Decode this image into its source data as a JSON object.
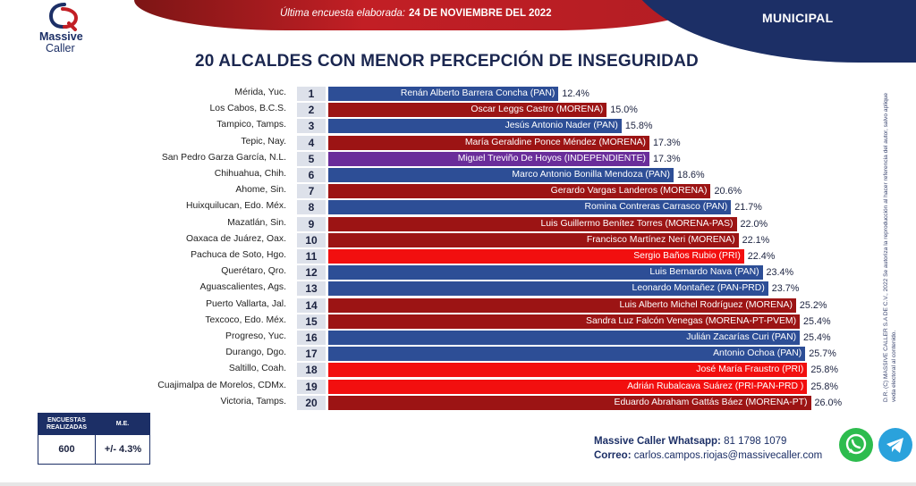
{
  "header": {
    "survey_prefix": "Última encuesta elaborada:",
    "survey_date": "24 DE NOVIEMBRE DEL 2022",
    "scope": "MUNICIPAL",
    "logo_line1": "Massive",
    "logo_line2": "Caller"
  },
  "colors": {
    "PAN": "#2d4e96",
    "MORENA": "#9c1414",
    "PRI": "#f20f0f",
    "INDEPENDIENTE": "#6a2d9a",
    "rank_bg": "#dde1ea",
    "navy": "#1c2f66"
  },
  "chart_data": {
    "type": "bar",
    "orientation": "horizontal",
    "title": "20 ALCALDES CON MENOR PERCEPCIÓN DE INSEGURIDAD",
    "xlim": [
      0,
      26
    ],
    "rows": [
      {
        "rank": "1",
        "city": "Mérida, Yuc.",
        "candidate": "Renán Alberto Barrera Concha (PAN)",
        "party": "PAN",
        "value": 12.4,
        "label": "12.4%"
      },
      {
        "rank": "2",
        "city": "Los Cabos, B.C.S.",
        "candidate": "Oscar Leggs Castro (MORENA)",
        "party": "MORENA",
        "value": 15.0,
        "label": "15.0%"
      },
      {
        "rank": "3",
        "city": "Tampico, Tamps.",
        "candidate": "Jesús Antonio Nader  (PAN)",
        "party": "PAN",
        "value": 15.8,
        "label": "15.8%"
      },
      {
        "rank": "4",
        "city": "Tepic, Nay.",
        "candidate": "María Geraldine Ponce Méndez (MORENA)",
        "party": "MORENA",
        "value": 17.3,
        "label": "17.3%"
      },
      {
        "rank": "5",
        "city": "San Pedro Garza García, N.L.",
        "candidate": "Miguel Treviño De Hoyos (INDEPENDIENTE)",
        "party": "INDEPENDIENTE",
        "value": 17.3,
        "label": "17.3%"
      },
      {
        "rank": "6",
        "city": "Chihuahua, Chih.",
        "candidate": "Marco Antonio Bonilla Mendoza (PAN)",
        "party": "PAN",
        "value": 18.6,
        "label": "18.6%"
      },
      {
        "rank": "7",
        "city": "Ahome, Sin.",
        "candidate": "Gerardo Vargas Landeros (MORENA)",
        "party": "MORENA",
        "value": 20.6,
        "label": "20.6%"
      },
      {
        "rank": "8",
        "city": "Huixquilucan, Edo. Méx.",
        "candidate": "Romina Contreras Carrasco  (PAN)",
        "party": "PAN",
        "value": 21.7,
        "label": "21.7%"
      },
      {
        "rank": "9",
        "city": "Mazatlán, Sin.",
        "candidate": "Luis Guillermo Benítez Torres (MORENA-PAS)",
        "party": "MORENA",
        "value": 22.0,
        "label": "22.0%"
      },
      {
        "rank": "10",
        "city": "Oaxaca de Juárez, Oax.",
        "candidate": "Francisco Martínez Neri (MORENA)",
        "party": "MORENA",
        "value": 22.1,
        "label": "22.1%"
      },
      {
        "rank": "11",
        "city": "Pachuca de Soto, Hgo.",
        "candidate": "Sergio Baños Rubio (PRI)",
        "party": "PRI",
        "value": 22.4,
        "label": "22.4%"
      },
      {
        "rank": "12",
        "city": "Querétaro, Qro.",
        "candidate": "Luis Bernardo Nava (PAN)",
        "party": "PAN",
        "value": 23.4,
        "label": "23.4%"
      },
      {
        "rank": "13",
        "city": "Aguascalientes, Ags.",
        "candidate": "Leonardo Montañez (PAN-PRD)",
        "party": "PAN",
        "value": 23.7,
        "label": "23.7%"
      },
      {
        "rank": "14",
        "city": "Puerto Vallarta, Jal.",
        "candidate": "Luis Alberto Michel Rodríguez (MORENA)",
        "party": "MORENA",
        "value": 25.2,
        "label": "25.2%"
      },
      {
        "rank": "15",
        "city": "Texcoco, Edo. Méx.",
        "candidate": "Sandra Luz Falcón Venegas (MORENA-PT-PVEM)",
        "party": "MORENA",
        "value": 25.4,
        "label": "25.4%"
      },
      {
        "rank": "16",
        "city": "Progreso, Yuc.",
        "candidate": "Julián Zacarías Curi (PAN)",
        "party": "PAN",
        "value": 25.4,
        "label": "25.4%"
      },
      {
        "rank": "17",
        "city": "Durango, Dgo.",
        "candidate": "Antonio Ochoa (PAN)",
        "party": "PAN",
        "value": 25.7,
        "label": "25.7%"
      },
      {
        "rank": "18",
        "city": "Saltillo, Coah.",
        "candidate": "José María Fraustro (PRI)",
        "party": "PRI",
        "value": 25.8,
        "label": "25.8%"
      },
      {
        "rank": "19",
        "city": "Cuajimalpa de Morelos, CDMx.",
        "candidate": "Adrián Rubalcava Suárez (PRI-PAN-PRD )",
        "party": "PRI",
        "value": 25.8,
        "label": "25.8%"
      },
      {
        "rank": "20",
        "city": "Victoria, Tamps.",
        "candidate": "Eduardo Abraham Gattás Báez (MORENA-PT)",
        "party": "MORENA",
        "value": 26.0,
        "label": "26.0%"
      }
    ]
  },
  "stats": {
    "col1_header": "ENCUESTAS REALIZADAS",
    "col2_header": "M.E.",
    "col1_value": "600",
    "col2_value": "+/- 4.3%"
  },
  "contact": {
    "whatsapp_label": "Massive Caller Whatsapp:",
    "whatsapp_number": "81 1798 1079",
    "email_label": "Correo:",
    "email": "carlos.campos.riojas@massivecaller.com"
  },
  "disclaimer": "D.R. (C) MASSIVE CALLER S.A DE C.V., 2022 Se autoriza la reproducción al hacer referencia del autor, salvo aplique veda electoral al contenido."
}
